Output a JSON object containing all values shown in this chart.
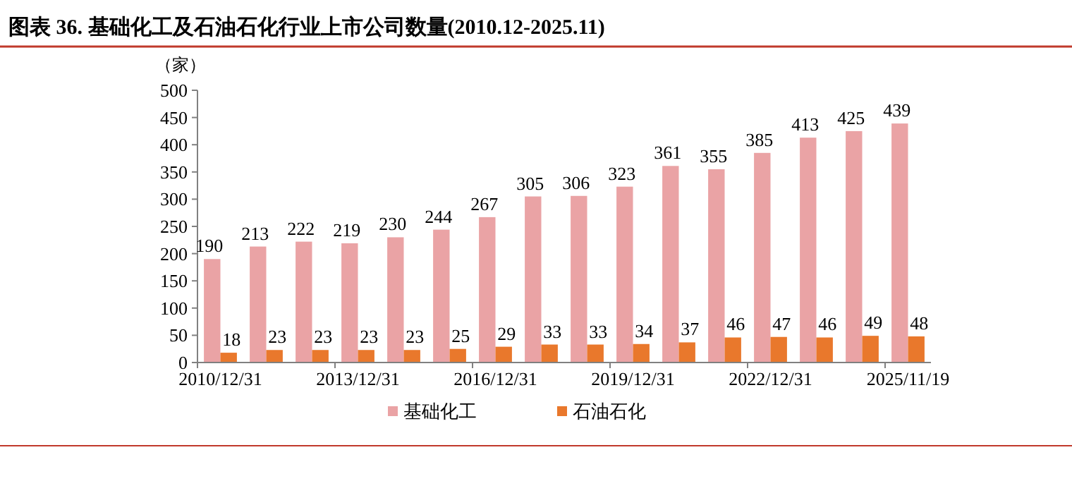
{
  "chart_data": {
    "type": "bar",
    "title": "图表 36. 基础化工及石油石化行业上市公司数量(2010.12-2025.11)",
    "ylabel": "（家）",
    "categories": [
      "2010/12/31",
      null,
      null,
      "2013/12/31",
      null,
      null,
      "2016/12/31",
      null,
      null,
      "2019/12/31",
      null,
      null,
      "2022/12/31",
      null,
      null,
      "2025/11/19"
    ],
    "series": [
      {
        "name": "基础化工",
        "color": "#eaa3a5",
        "values": [
          190,
          213,
          222,
          219,
          230,
          244,
          267,
          305,
          306,
          323,
          361,
          355,
          385,
          413,
          425,
          439
        ]
      },
      {
        "name": "石油石化",
        "color": "#e9782c",
        "values": [
          18,
          23,
          23,
          23,
          23,
          25,
          29,
          33,
          33,
          34,
          37,
          46,
          47,
          46,
          49,
          48
        ]
      }
    ],
    "ylim": [
      0,
      500
    ],
    "yticks": [
      0,
      50,
      100,
      150,
      200,
      250,
      300,
      350,
      400,
      450,
      500
    ],
    "data_labels": true,
    "legend": "bottom"
  }
}
